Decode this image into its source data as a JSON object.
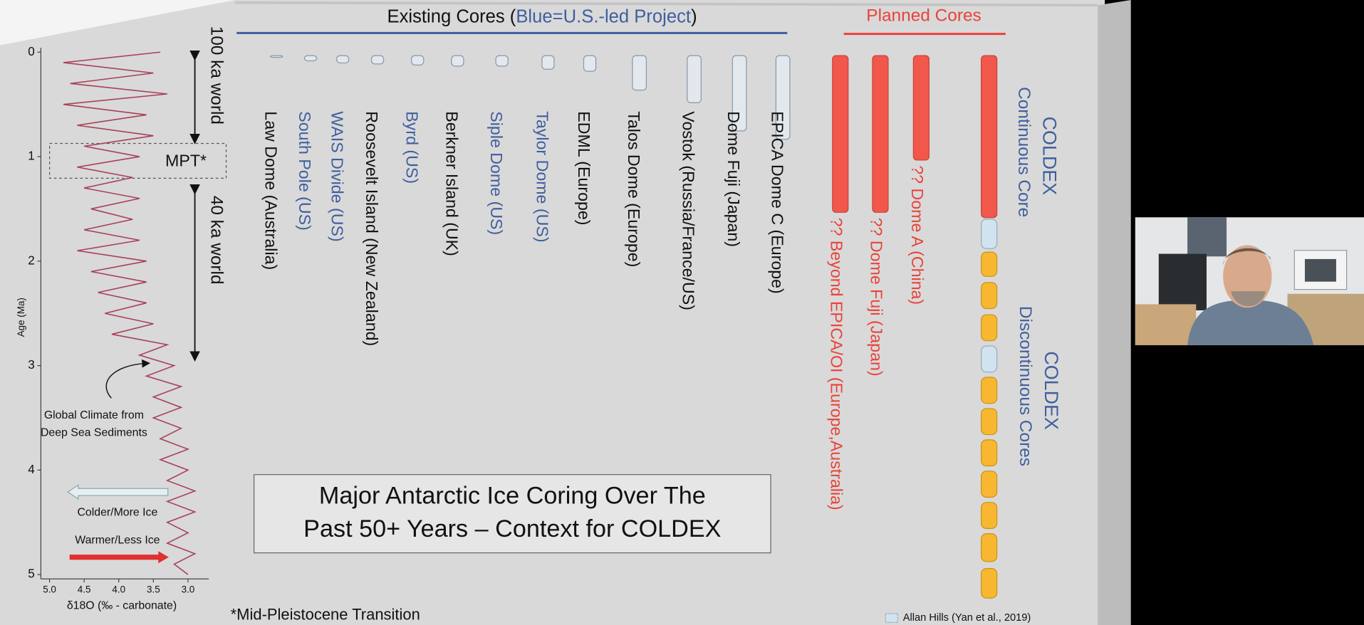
{
  "header": {
    "existing_prefix": "Existing Cores (",
    "existing_blue": "Blue=U.S.-led Project",
    "existing_suffix": ")",
    "planned": "Planned Cores"
  },
  "chart_data": {
    "type": "line",
    "orientation": "vertical",
    "xlabel": "Age (Ma)",
    "ylabel": "δ18O (‰ - carbonate)",
    "x": [
      0,
      0.1,
      0.2,
      0.3,
      0.4,
      0.5,
      0.6,
      0.7,
      0.8,
      0.9,
      1,
      1.1,
      1.2,
      1.3,
      1.4,
      1.5,
      1.6,
      1.7,
      1.8,
      1.9,
      2,
      2.1,
      2.2,
      2.3,
      2.4,
      2.5,
      2.6,
      2.7,
      2.8,
      2.9,
      3,
      3.1,
      3.2,
      3.3,
      3.4,
      3.5,
      3.6,
      3.7,
      3.8,
      3.9,
      4,
      4.1,
      4.2,
      4.3,
      4.4,
      4.5,
      4.6,
      4.7,
      4.8,
      4.9,
      5
    ],
    "series": [
      {
        "color": "#a8405a",
        "values": [
          3.4,
          4.8,
          3.5,
          4.7,
          3.3,
          4.8,
          3.6,
          4.6,
          3.5,
          4.5,
          3.7,
          4.6,
          3.8,
          4.5,
          3.7,
          4.4,
          3.8,
          4.5,
          3.7,
          4.6,
          3.6,
          4.4,
          3.6,
          4.3,
          3.6,
          4.2,
          3.5,
          4.1,
          3.3,
          3.7,
          3.2,
          3.6,
          3.1,
          3.5,
          3.1,
          3.5,
          3.1,
          3.4,
          3.0,
          3.4,
          3.0,
          3.3,
          2.9,
          3.3,
          2.9,
          3.3,
          3.0,
          3.3,
          2.9,
          3.2,
          3.0
        ]
      }
    ],
    "xlim": [
      0,
      5
    ],
    "xticks": [
      0,
      1,
      2,
      3,
      4,
      5
    ],
    "ylim": [
      5.1,
      2.75
    ],
    "yticks": [
      {
        "value": 5,
        "label": "5.0"
      },
      4.5,
      {
        "value": 4,
        "label": "4.0"
      },
      3.5,
      {
        "value": 3,
        "label": "3.0"
      }
    ]
  },
  "annotations": {
    "world100": "100 ka world",
    "mpt": "MPT*",
    "world40": "40 ka world",
    "global": [
      "Global Climate from",
      "Deep Sea Sediments"
    ],
    "colder": "Colder/More Ice",
    "warmer": "Warmer/Less Ice"
  },
  "cores": {
    "existing": [
      {
        "label": "Law Dome (Australia)",
        "us": false,
        "depth": 0.01
      },
      {
        "label": "South Pole (US)",
        "us": true,
        "depth": 0.05
      },
      {
        "label": "WAIS Divide (US)",
        "us": true,
        "depth": 0.07
      },
      {
        "label": "Roosevelt Island (New Zealand)",
        "us": false,
        "depth": 0.08
      },
      {
        "label": "Byrd (US)",
        "us": true,
        "depth": 0.09
      },
      {
        "label": "Berkner Island (UK)",
        "us": false,
        "depth": 0.1
      },
      {
        "label": "Siple  Dome (US)",
        "us": true,
        "depth": 0.1
      },
      {
        "label": "Taylor  Dome (US)",
        "us": true,
        "depth": 0.13
      },
      {
        "label": "EDML (Europe)",
        "us": false,
        "depth": 0.15
      },
      {
        "label": "Talos Dome (Europe)",
        "us": false,
        "depth": 0.33
      },
      {
        "label": "Vostok (Russia/France/US)",
        "us": false,
        "depth": 0.45
      },
      {
        "label": "Dome Fuji (Japan)",
        "us": false,
        "depth": 0.72
      },
      {
        "label": "EPICA Dome C (Europe)",
        "us": false,
        "depth": 0.8
      }
    ],
    "planned": [
      {
        "label": "?? Beyond EPICA/OI (Europe,Australia)",
        "depth": 1.5
      },
      {
        "label": "?? Dome Fuji (Japan)",
        "depth": 1.5
      },
      {
        "label": "?? Dome A (China)",
        "depth": 1.0
      }
    ],
    "coldex": {
      "depth": 1.55,
      "continuous": [
        "COLDEX",
        "Continuous Core"
      ],
      "discontinuous": [
        "COLDEX",
        "Discontinuous Cores"
      ]
    }
  },
  "title": [
    "Major Antarctic Ice Coring Over The",
    "Past 50+ Years – Context for COLDEX"
  ],
  "footnote": "*Mid-Pleistocene Transition",
  "legend": "Allan Hills (Yan et al., 2019)"
}
